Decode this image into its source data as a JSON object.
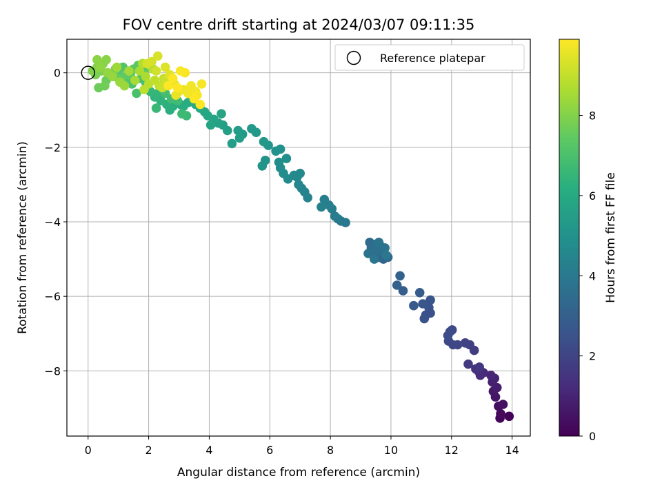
{
  "chart_data": {
    "type": "scatter",
    "title": "FOV centre drift starting at 2024/03/07 09:11:35",
    "xlabel": "Angular distance from reference (arcmin)",
    "ylabel": "Rotation from reference (arcmin)",
    "xlim": [
      -0.7,
      14.6
    ],
    "ylim": [
      -9.75,
      0.9
    ],
    "xticks": [
      0,
      2,
      4,
      6,
      8,
      10,
      12,
      14
    ],
    "yticks": [
      0,
      -2,
      -4,
      -6,
      -8
    ],
    "grid": true,
    "legend": {
      "placement": "top-right",
      "entries": [
        "Reference platepar"
      ]
    },
    "reference_point": {
      "x": 0,
      "y": 0
    },
    "colorbar": {
      "label": "Hours from first FF file",
      "range": [
        0,
        9.9
      ],
      "ticks": [
        0,
        2,
        4,
        6,
        8
      ],
      "colormap": "viridis"
    },
    "series": [
      {
        "columns": [
          "x",
          "y",
          "hours"
        ],
        "points": [
          [
            13.9,
            -9.22,
            0.05
          ],
          [
            13.6,
            -9.27,
            0.15
          ],
          [
            13.62,
            -9.15,
            0.25
          ],
          [
            13.55,
            -8.95,
            0.35
          ],
          [
            13.7,
            -8.9,
            0.45
          ],
          [
            13.45,
            -8.7,
            0.55
          ],
          [
            13.38,
            -8.55,
            0.65
          ],
          [
            13.5,
            -8.45,
            0.75
          ],
          [
            13.35,
            -8.3,
            0.85
          ],
          [
            13.42,
            -8.2,
            0.95
          ],
          [
            13.3,
            -8.12,
            1.05
          ],
          [
            13.05,
            -8.05,
            1.15
          ],
          [
            12.95,
            -8.12,
            1.25
          ],
          [
            12.88,
            -8.0,
            1.35
          ],
          [
            12.8,
            -7.95,
            1.45
          ],
          [
            12.92,
            -7.9,
            1.55
          ],
          [
            12.55,
            -7.82,
            1.65
          ],
          [
            12.75,
            -7.45,
            1.75
          ],
          [
            12.6,
            -7.3,
            1.85
          ],
          [
            12.45,
            -7.25,
            1.95
          ],
          [
            12.2,
            -7.3,
            2.05
          ],
          [
            12.05,
            -7.3,
            2.1
          ],
          [
            11.9,
            -7.2,
            2.15
          ],
          [
            12.02,
            -6.9,
            2.2
          ],
          [
            11.95,
            -6.95,
            2.25
          ],
          [
            11.88,
            -7.05,
            2.3
          ],
          [
            11.3,
            -6.45,
            2.4
          ],
          [
            11.15,
            -6.5,
            2.45
          ],
          [
            11.1,
            -6.6,
            2.5
          ],
          [
            11.25,
            -6.3,
            2.55
          ],
          [
            11.3,
            -6.1,
            2.6
          ],
          [
            11.05,
            -6.2,
            2.65
          ],
          [
            10.75,
            -6.25,
            2.75
          ],
          [
            10.95,
            -5.9,
            2.85
          ],
          [
            10.4,
            -5.85,
            2.95
          ],
          [
            10.2,
            -5.7,
            3.05
          ],
          [
            10.3,
            -5.45,
            3.1
          ],
          [
            9.9,
            -4.95,
            3.15
          ],
          [
            9.75,
            -5.0,
            3.2
          ],
          [
            9.6,
            -4.95,
            3.25
          ],
          [
            9.55,
            -4.85,
            3.3
          ],
          [
            9.45,
            -4.9,
            3.35
          ],
          [
            9.35,
            -4.7,
            3.4
          ],
          [
            9.3,
            -4.55,
            3.45
          ],
          [
            9.5,
            -4.6,
            3.5
          ],
          [
            9.65,
            -4.65,
            3.55
          ],
          [
            9.7,
            -4.8,
            3.6
          ],
          [
            9.5,
            -4.75,
            3.65
          ],
          [
            9.25,
            -4.85,
            3.7
          ],
          [
            9.8,
            -4.7,
            3.75
          ],
          [
            9.6,
            -4.55,
            3.8
          ],
          [
            9.45,
            -5.0,
            3.85
          ],
          [
            9.85,
            -4.9,
            3.9
          ],
          [
            8.5,
            -4.02,
            3.95
          ],
          [
            8.35,
            -3.98,
            4.0
          ],
          [
            8.25,
            -3.92,
            4.05
          ],
          [
            8.15,
            -3.85,
            4.1
          ],
          [
            8.05,
            -3.65,
            4.15
          ],
          [
            7.95,
            -3.55,
            4.2
          ],
          [
            7.8,
            -3.4,
            4.25
          ],
          [
            7.7,
            -3.6,
            4.3
          ],
          [
            7.25,
            -3.35,
            4.35
          ],
          [
            7.15,
            -3.2,
            4.4
          ],
          [
            7.05,
            -3.1,
            4.45
          ],
          [
            6.95,
            -3.0,
            4.5
          ],
          [
            6.9,
            -2.8,
            4.55
          ],
          [
            7.0,
            -2.7,
            4.6
          ],
          [
            6.8,
            -2.75,
            4.65
          ],
          [
            6.6,
            -2.85,
            4.7
          ],
          [
            6.45,
            -2.7,
            4.75
          ],
          [
            6.35,
            -2.55,
            4.8
          ],
          [
            6.3,
            -2.4,
            4.85
          ],
          [
            6.55,
            -2.3,
            4.9
          ],
          [
            6.35,
            -2.05,
            4.95
          ],
          [
            6.2,
            -2.1,
            5.0
          ],
          [
            5.85,
            -2.35,
            5.05
          ],
          [
            5.75,
            -2.5,
            5.1
          ],
          [
            5.95,
            -1.95,
            5.15
          ],
          [
            5.8,
            -1.85,
            5.2
          ],
          [
            5.55,
            -1.6,
            5.25
          ],
          [
            5.4,
            -1.5,
            5.3
          ],
          [
            5.1,
            -1.65,
            5.35
          ],
          [
            4.95,
            -1.55,
            5.4
          ],
          [
            5.0,
            -1.75,
            5.45
          ],
          [
            4.75,
            -1.9,
            5.5
          ],
          [
            4.6,
            -1.55,
            5.55
          ],
          [
            4.45,
            -1.4,
            5.6
          ],
          [
            4.3,
            -1.35,
            5.65
          ],
          [
            4.15,
            -1.25,
            5.7
          ],
          [
            4.4,
            -1.1,
            5.75
          ],
          [
            4.05,
            -1.4,
            5.8
          ],
          [
            3.95,
            -1.15,
            5.85
          ],
          [
            3.85,
            -1.05,
            5.9
          ],
          [
            3.7,
            -0.95,
            5.95
          ],
          [
            3.55,
            -0.85,
            6.0
          ],
          [
            3.3,
            -0.8,
            6.05
          ],
          [
            3.15,
            -0.9,
            6.1
          ],
          [
            3.05,
            -0.85,
            6.15
          ],
          [
            2.8,
            -0.9,
            6.2
          ],
          [
            2.7,
            -1.0,
            6.25
          ],
          [
            2.6,
            -0.85,
            6.3
          ],
          [
            2.4,
            -0.75,
            6.35
          ],
          [
            2.2,
            -0.65,
            6.4
          ],
          [
            2.3,
            -0.55,
            6.45
          ],
          [
            2.05,
            -0.5,
            6.5
          ],
          [
            1.95,
            -0.4,
            6.55
          ],
          [
            2.25,
            -0.95,
            6.6
          ],
          [
            3.25,
            -1.15,
            6.65
          ],
          [
            3.1,
            -1.1,
            6.7
          ],
          [
            2.95,
            -0.75,
            6.75
          ],
          [
            2.75,
            -0.7,
            6.8
          ],
          [
            2.55,
            -0.55,
            6.85
          ],
          [
            1.9,
            -0.25,
            6.9
          ],
          [
            1.75,
            -0.15,
            6.95
          ],
          [
            1.6,
            -0.55,
            7.0
          ],
          [
            1.45,
            -0.3,
            7.05
          ],
          [
            1.3,
            -0.2,
            7.1
          ],
          [
            1.15,
            0.15,
            7.15
          ],
          [
            1.0,
            0.05,
            7.2
          ],
          [
            1.25,
            -0.1,
            7.25
          ],
          [
            1.5,
            0.1,
            7.3
          ],
          [
            1.65,
            0.2,
            7.35
          ],
          [
            1.85,
            0.05,
            7.4
          ],
          [
            1.4,
            -0.05,
            7.45
          ],
          [
            1.1,
            -0.15,
            7.5
          ],
          [
            0.85,
            -0.1,
            7.55
          ],
          [
            0.6,
            -0.2,
            7.6
          ],
          [
            0.35,
            -0.4,
            7.65
          ],
          [
            0.55,
            -0.35,
            7.7
          ],
          [
            0.75,
            -0.05,
            7.75
          ],
          [
            0.9,
            0.1,
            7.8
          ],
          [
            0.45,
            0.05,
            7.85
          ],
          [
            0.25,
            -0.05,
            7.9
          ],
          [
            0.15,
            0.05,
            7.95
          ],
          [
            0.3,
            0.15,
            8.0
          ],
          [
            0.5,
            0.25,
            8.05
          ],
          [
            0.6,
            0.35,
            8.1
          ],
          [
            0.3,
            0.35,
            8.15
          ],
          [
            0.4,
            0.15,
            8.2
          ],
          [
            0.65,
            0.0,
            8.25
          ],
          [
            0.8,
            -0.1,
            8.3
          ],
          [
            1.05,
            -0.25,
            8.35
          ],
          [
            1.2,
            -0.35,
            8.4
          ],
          [
            0.95,
            0.15,
            8.45
          ],
          [
            1.35,
            0.05,
            8.5
          ],
          [
            1.55,
            -0.2,
            8.55
          ],
          [
            1.7,
            0.05,
            8.6
          ],
          [
            1.9,
            -0.1,
            8.65
          ],
          [
            2.05,
            0.2,
            8.7
          ],
          [
            1.8,
            0.25,
            8.75
          ],
          [
            2.15,
            0.1,
            8.8
          ],
          [
            2.0,
            -0.3,
            8.85
          ],
          [
            1.85,
            -0.45,
            8.9
          ],
          [
            2.2,
            -0.2,
            8.95
          ],
          [
            2.35,
            -0.35,
            9.0
          ],
          [
            2.5,
            -0.15,
            9.05
          ],
          [
            2.45,
            -0.4,
            9.1
          ],
          [
            2.6,
            -0.2,
            9.15
          ],
          [
            2.25,
            0.05,
            9.2
          ],
          [
            2.1,
            0.3,
            9.25
          ],
          [
            1.95,
            0.25,
            9.3
          ],
          [
            2.3,
            0.45,
            9.35
          ],
          [
            2.55,
            0.15,
            9.4
          ],
          [
            2.7,
            -0.05,
            9.45
          ],
          [
            2.85,
            -0.3,
            9.5
          ],
          [
            3.0,
            -0.5,
            9.55
          ],
          [
            2.9,
            -0.6,
            9.6
          ],
          [
            3.15,
            -0.45,
            9.65
          ],
          [
            3.3,
            -0.55,
            9.7
          ],
          [
            3.4,
            -0.35,
            9.72
          ],
          [
            3.55,
            -0.5,
            9.75
          ],
          [
            3.75,
            -0.3,
            9.78
          ],
          [
            3.6,
            -0.6,
            9.8
          ],
          [
            3.2,
            0.0,
            9.82
          ],
          [
            3.05,
            0.05,
            9.85
          ],
          [
            2.8,
            -0.15,
            9.87
          ],
          [
            2.65,
            -0.35,
            9.88
          ],
          [
            3.5,
            -0.7,
            9.89
          ],
          [
            3.7,
            -0.85,
            9.9
          ],
          [
            2.95,
            -0.4,
            9.9
          ]
        ]
      }
    ]
  }
}
